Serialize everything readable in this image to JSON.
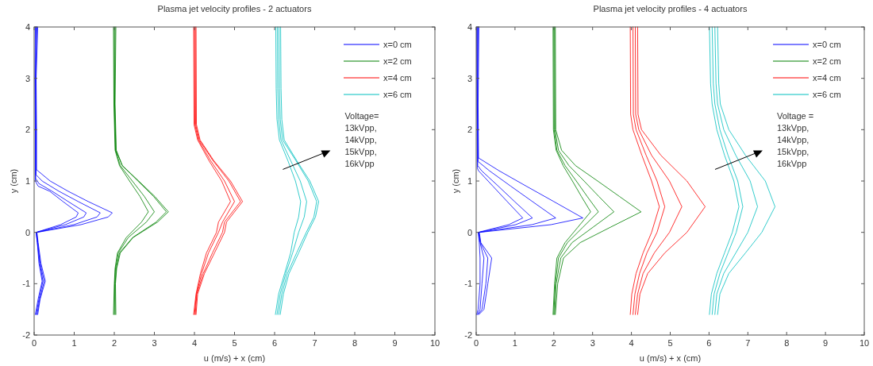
{
  "chart_data": [
    {
      "type": "line",
      "title": "Plasma jet velocity profiles - 2 actuators",
      "xlabel": "u (m/s) + x (cm)",
      "ylabel": "y (cm)",
      "xlim": [
        0,
        10
      ],
      "ylim": [
        -2,
        4
      ],
      "xticks": [
        0,
        1,
        2,
        3,
        4,
        5,
        6,
        7,
        8,
        9,
        10
      ],
      "yticks": [
        -2,
        -1,
        0,
        1,
        2,
        3,
        4
      ],
      "legend": "top right",
      "annotations": [
        "Voltage=\n13kVpp,\n14kVpp,\n15kVpp,\n16kVpp"
      ],
      "series": [
        {
          "name": "x=0 cm",
          "color": "#0000ff",
          "x": [
            0.03,
            0.1,
            0.2,
            0.12,
            0.08,
            0.05,
            0.66,
            1.05,
            1.1,
            0.72,
            0.39,
            0.1,
            0.03,
            0.03,
            0.02,
            0.03
          ],
          "values": [
            -1.6,
            -1.3,
            -0.95,
            -0.6,
            -0.2,
            0,
            0.15,
            0.3,
            0.38,
            0.6,
            0.8,
            0.9,
            1.0,
            2,
            3,
            4
          ]
        },
        {
          "color": "#0000ff",
          "x": [
            0.05,
            0.12,
            0.22,
            0.14,
            0.08,
            0.05,
            0.78,
            1.24,
            1.3,
            0.85,
            0.45,
            0.12,
            0.04,
            0.04,
            0.03,
            0.05
          ],
          "values": [
            -1.6,
            -1.3,
            -0.95,
            -0.6,
            -0.2,
            0,
            0.15,
            0.3,
            0.38,
            0.6,
            0.8,
            0.95,
            1.05,
            2,
            3,
            4
          ]
        },
        {
          "color": "#0000ff",
          "x": [
            0.07,
            0.14,
            0.25,
            0.15,
            0.09,
            0.06,
            0.99,
            1.57,
            1.65,
            1.1,
            0.62,
            0.2,
            0.05,
            0.05,
            0.04,
            0.07
          ],
          "values": [
            -1.6,
            -1.3,
            -0.95,
            -0.6,
            -0.2,
            0,
            0.15,
            0.3,
            0.38,
            0.6,
            0.8,
            1.0,
            1.12,
            2,
            3,
            4
          ]
        },
        {
          "color": "#0000ff",
          "x": [
            0.09,
            0.15,
            0.28,
            0.17,
            0.1,
            0.07,
            1.17,
            1.85,
            1.95,
            1.35,
            0.85,
            0.4,
            0.06,
            0.06,
            0.05,
            0.09
          ],
          "values": [
            -1.6,
            -1.3,
            -0.95,
            -0.6,
            -0.2,
            0,
            0.15,
            0.3,
            0.38,
            0.6,
            0.8,
            1.0,
            1.22,
            2,
            3,
            4
          ]
        },
        {
          "name": "x=2 cm",
          "color": "#008000",
          "x": [
            1.98,
            2.0,
            2.02,
            2.08,
            2.3,
            2.68,
            2.85,
            2.64,
            2.38,
            2.13,
            2.02,
            1.99,
            1.98
          ],
          "values": [
            -1.6,
            -1.0,
            -0.7,
            -0.4,
            -0.1,
            0.2,
            0.4,
            0.7,
            1.0,
            1.3,
            1.6,
            2.5,
            4
          ]
        },
        {
          "color": "#008000",
          "x": [
            2.0,
            2.01,
            2.03,
            2.1,
            2.35,
            2.8,
            3.0,
            2.75,
            2.45,
            2.15,
            2.03,
            2.0,
            2.0
          ],
          "values": [
            -1.6,
            -1.0,
            -0.7,
            -0.4,
            -0.1,
            0.2,
            0.4,
            0.7,
            1.0,
            1.3,
            1.6,
            2.5,
            4
          ]
        },
        {
          "color": "#008000",
          "x": [
            2.02,
            2.02,
            2.05,
            2.13,
            2.46,
            3.04,
            3.3,
            2.98,
            2.59,
            2.2,
            2.04,
            2.01,
            2.02
          ],
          "values": [
            -1.6,
            -1.0,
            -0.7,
            -0.4,
            -0.1,
            0.2,
            0.4,
            0.7,
            1.0,
            1.3,
            1.6,
            2.5,
            4
          ]
        },
        {
          "color": "#008000",
          "x": [
            2.04,
            2.03,
            2.06,
            2.15,
            2.47,
            3.08,
            3.35,
            3.01,
            2.61,
            2.2,
            2.05,
            2.02,
            2.04
          ],
          "values": [
            -1.6,
            -1.0,
            -0.7,
            -0.4,
            -0.1,
            0.2,
            0.4,
            0.7,
            1.0,
            1.3,
            1.6,
            2.5,
            4
          ]
        },
        {
          "name": "x=4 cm",
          "color": "#ff0000",
          "x": [
            3.98,
            4.04,
            4.15,
            4.3,
            4.55,
            4.6,
            4.9,
            4.68,
            4.36,
            4.08,
            3.99,
            3.98
          ],
          "values": [
            -1.6,
            -1.2,
            -0.8,
            -0.4,
            0,
            0.2,
            0.6,
            1.0,
            1.4,
            1.8,
            2.1,
            4
          ]
        },
        {
          "color": "#ff0000",
          "x": [
            4.0,
            4.05,
            4.18,
            4.35,
            4.6,
            4.7,
            5.0,
            4.75,
            4.4,
            4.1,
            4.01,
            4.0
          ],
          "values": [
            -1.6,
            -1.2,
            -0.8,
            -0.4,
            0,
            0.2,
            0.6,
            1.0,
            1.4,
            1.8,
            2.1,
            4
          ]
        },
        {
          "color": "#ff0000",
          "x": [
            4.02,
            4.06,
            4.22,
            4.45,
            4.7,
            4.75,
            5.15,
            4.86,
            4.46,
            4.12,
            4.03,
            4.02
          ],
          "values": [
            -1.6,
            -1.2,
            -0.8,
            -0.4,
            0,
            0.2,
            0.6,
            1.0,
            1.4,
            1.8,
            2.1,
            4
          ]
        },
        {
          "color": "#ff0000",
          "x": [
            4.04,
            4.08,
            4.25,
            4.5,
            4.75,
            4.8,
            5.2,
            4.9,
            4.48,
            4.14,
            4.05,
            4.04
          ],
          "values": [
            -1.6,
            -1.2,
            -0.8,
            -0.4,
            0,
            0.2,
            0.6,
            1.0,
            1.4,
            1.8,
            2.1,
            4
          ]
        },
        {
          "name": "x=6 cm",
          "color": "#00bfbf",
          "x": [
            6.02,
            6.1,
            6.25,
            6.4,
            6.49,
            6.6,
            6.65,
            6.52,
            6.33,
            6.12,
            6.06,
            6.04,
            6.03
          ],
          "values": [
            -1.6,
            -1.2,
            -0.8,
            -0.4,
            0,
            0.3,
            0.6,
            1.0,
            1.4,
            1.8,
            2.2,
            2.8,
            4
          ]
        },
        {
          "color": "#00bfbf",
          "x": [
            6.06,
            6.14,
            6.28,
            6.45,
            6.6,
            6.74,
            6.8,
            6.64,
            6.4,
            6.16,
            6.1,
            6.08,
            6.07
          ],
          "values": [
            -1.6,
            -1.2,
            -0.8,
            -0.4,
            0,
            0.3,
            0.6,
            1.0,
            1.4,
            1.8,
            2.2,
            2.8,
            4
          ]
        },
        {
          "color": "#00bfbf",
          "x": [
            6.1,
            6.18,
            6.32,
            6.55,
            6.79,
            6.98,
            7.05,
            6.84,
            6.53,
            6.2,
            6.14,
            6.12,
            6.11
          ],
          "values": [
            -1.6,
            -1.2,
            -0.8,
            -0.4,
            0,
            0.3,
            0.6,
            1.0,
            1.4,
            1.8,
            2.2,
            2.8,
            4
          ]
        },
        {
          "color": "#00bfbf",
          "x": [
            6.14,
            6.22,
            6.36,
            6.6,
            6.83,
            7.02,
            7.1,
            6.88,
            6.55,
            6.24,
            6.18,
            6.16,
            6.15
          ],
          "values": [
            -1.6,
            -1.2,
            -0.8,
            -0.4,
            0,
            0.3,
            0.6,
            1.0,
            1.4,
            1.8,
            2.2,
            2.8,
            4
          ]
        }
      ]
    },
    {
      "type": "line",
      "title": "Plasma jet velocity profiles - 4 actuators",
      "xlabel": "u (m/s) + x (cm)",
      "ylabel": "y (cm)",
      "xlim": [
        0,
        10
      ],
      "ylim": [
        -2,
        4
      ],
      "xticks": [
        0,
        1,
        2,
        3,
        4,
        5,
        6,
        7,
        8,
        9,
        10
      ],
      "yticks": [
        -2,
        -1,
        0,
        1,
        2,
        3,
        4
      ],
      "legend": "top right",
      "annotations": [
        "Voltage =\n13kVpp,\n14kVpp,\n15kVpp,\n16kVpp"
      ],
      "series": [
        {
          "name": "x=0 cm",
          "color": "#0000ff",
          "x": [
            0.01,
            0.05,
            0.1,
            0.1,
            0.08,
            0.05,
            0.84,
            1.2,
            0.8,
            0.43,
            0.06,
            0.03,
            0.02,
            0.01
          ],
          "values": [
            -1.6,
            -1.5,
            -1.0,
            -0.5,
            -0.2,
            0,
            0.15,
            0.28,
            0.6,
            0.9,
            1.2,
            1.25,
            2.5,
            4
          ]
        },
        {
          "color": "#0000ff",
          "x": [
            0.03,
            0.1,
            0.15,
            0.2,
            0.1,
            0.06,
            1.02,
            1.45,
            0.99,
            0.57,
            0.14,
            0.04,
            0.03,
            0.03
          ],
          "values": [
            -1.6,
            -1.5,
            -1.0,
            -0.5,
            -0.2,
            0,
            0.15,
            0.28,
            0.6,
            0.9,
            1.2,
            1.3,
            2.5,
            4
          ]
        },
        {
          "color": "#0000ff",
          "x": [
            0.05,
            0.15,
            0.25,
            0.3,
            0.11,
            0.07,
            1.44,
            2.05,
            1.45,
            0.89,
            0.34,
            0.05,
            0.04,
            0.05
          ],
          "values": [
            -1.6,
            -1.5,
            -1.0,
            -0.5,
            -0.2,
            0,
            0.15,
            0.28,
            0.6,
            0.9,
            1.2,
            1.38,
            2.5,
            4
          ]
        },
        {
          "color": "#0000ff",
          "x": [
            0.07,
            0.2,
            0.3,
            0.4,
            0.12,
            0.08,
            1.93,
            2.75,
            2.0,
            1.29,
            0.59,
            0.06,
            0.05,
            0.07
          ],
          "values": [
            -1.6,
            -1.5,
            -1.0,
            -0.5,
            -0.2,
            0,
            0.15,
            0.28,
            0.6,
            0.9,
            1.2,
            1.45,
            2.5,
            4
          ]
        },
        {
          "name": "x=2 cm",
          "color": "#008000",
          "x": [
            1.98,
            2.02,
            2.08,
            2.29,
            2.62,
            2.95,
            2.71,
            2.48,
            2.24,
            2.06,
            1.99,
            1.98
          ],
          "values": [
            -1.6,
            -1.0,
            -0.5,
            -0.2,
            0.1,
            0.4,
            0.7,
            1.0,
            1.3,
            1.6,
            2.0,
            4
          ]
        },
        {
          "color": "#008000",
          "x": [
            2.0,
            2.04,
            2.12,
            2.35,
            2.75,
            3.15,
            2.86,
            2.58,
            2.29,
            2.08,
            2.01,
            2.0
          ],
          "values": [
            -1.6,
            -1.0,
            -0.5,
            -0.2,
            0.1,
            0.4,
            0.7,
            1.0,
            1.3,
            1.6,
            2.0,
            4
          ]
        },
        {
          "color": "#008000",
          "x": [
            2.02,
            2.06,
            2.18,
            2.47,
            3.01,
            3.55,
            3.16,
            2.78,
            2.39,
            2.12,
            2.03,
            2.02
          ],
          "values": [
            -1.6,
            -1.0,
            -0.5,
            -0.2,
            0.1,
            0.4,
            0.7,
            1.0,
            1.3,
            1.6,
            2.0,
            4
          ]
        },
        {
          "color": "#008000",
          "x": [
            2.04,
            2.1,
            2.25,
            2.68,
            3.46,
            4.25,
            3.69,
            3.13,
            2.56,
            2.2,
            2.05,
            2.04
          ],
          "values": [
            -1.6,
            -1.0,
            -0.5,
            -0.2,
            0.1,
            0.4,
            0.7,
            1.0,
            1.3,
            1.6,
            2.0,
            4
          ]
        },
        {
          "name": "x=4 cm",
          "color": "#ff0000",
          "x": [
            3.97,
            4.01,
            4.12,
            4.3,
            4.52,
            4.72,
            4.52,
            4.27,
            4.04,
            3.98,
            3.97
          ],
          "values": [
            -1.6,
            -1.2,
            -0.8,
            -0.4,
            0,
            0.5,
            1.0,
            1.5,
            2.0,
            2.3,
            4
          ]
        },
        {
          "color": "#ff0000",
          "x": [
            4.04,
            4.09,
            4.21,
            4.4,
            4.66,
            4.86,
            4.66,
            4.38,
            4.12,
            4.05,
            4.04
          ],
          "values": [
            -1.6,
            -1.2,
            -0.8,
            -0.4,
            0,
            0.5,
            1.0,
            1.5,
            2.0,
            2.3,
            4
          ]
        },
        {
          "color": "#ff0000",
          "x": [
            4.1,
            4.16,
            4.3,
            4.59,
            4.98,
            5.3,
            4.98,
            4.52,
            4.19,
            4.11,
            4.1
          ],
          "values": [
            -1.6,
            -1.2,
            -0.8,
            -0.4,
            0,
            0.5,
            1.0,
            1.5,
            2.0,
            2.3,
            4
          ]
        },
        {
          "color": "#ff0000",
          "x": [
            4.16,
            4.22,
            4.42,
            4.86,
            5.43,
            5.9,
            5.43,
            4.76,
            4.26,
            4.17,
            4.16
          ],
          "values": [
            -1.6,
            -1.2,
            -0.8,
            -0.4,
            0,
            0.5,
            1.0,
            1.5,
            2.0,
            2.3,
            4
          ]
        },
        {
          "name": "x=6 cm",
          "color": "#00bfbf",
          "x": [
            6.01,
            6.06,
            6.2,
            6.4,
            6.6,
            6.77,
            6.64,
            6.4,
            6.2,
            6.08,
            6.04,
            6.01
          ],
          "values": [
            -1.6,
            -1.2,
            -0.8,
            -0.4,
            0,
            0.5,
            1.0,
            1.5,
            2.0,
            2.5,
            2.9,
            4
          ]
        },
        {
          "color": "#00bfbf",
          "x": [
            6.08,
            6.13,
            6.28,
            6.49,
            6.7,
            6.87,
            6.74,
            6.49,
            6.28,
            6.15,
            6.11,
            6.08
          ],
          "values": [
            -1.6,
            -1.2,
            -0.8,
            -0.4,
            0,
            0.5,
            1.0,
            1.5,
            2.0,
            2.5,
            2.9,
            4
          ]
        },
        {
          "color": "#00bfbf",
          "x": [
            6.15,
            6.2,
            6.38,
            6.69,
            7.0,
            7.25,
            7.06,
            6.69,
            6.38,
            6.22,
            6.18,
            6.15
          ],
          "values": [
            -1.6,
            -1.2,
            -0.8,
            -0.4,
            0,
            0.5,
            1.0,
            1.5,
            2.0,
            2.5,
            2.9,
            4
          ]
        },
        {
          "color": "#00bfbf",
          "x": [
            6.22,
            6.28,
            6.51,
            6.94,
            7.36,
            7.7,
            7.45,
            6.94,
            6.51,
            6.29,
            6.25,
            6.22
          ],
          "values": [
            -1.6,
            -1.2,
            -0.8,
            -0.4,
            0,
            0.5,
            1.0,
            1.5,
            2.0,
            2.5,
            2.9,
            4
          ]
        }
      ]
    }
  ]
}
